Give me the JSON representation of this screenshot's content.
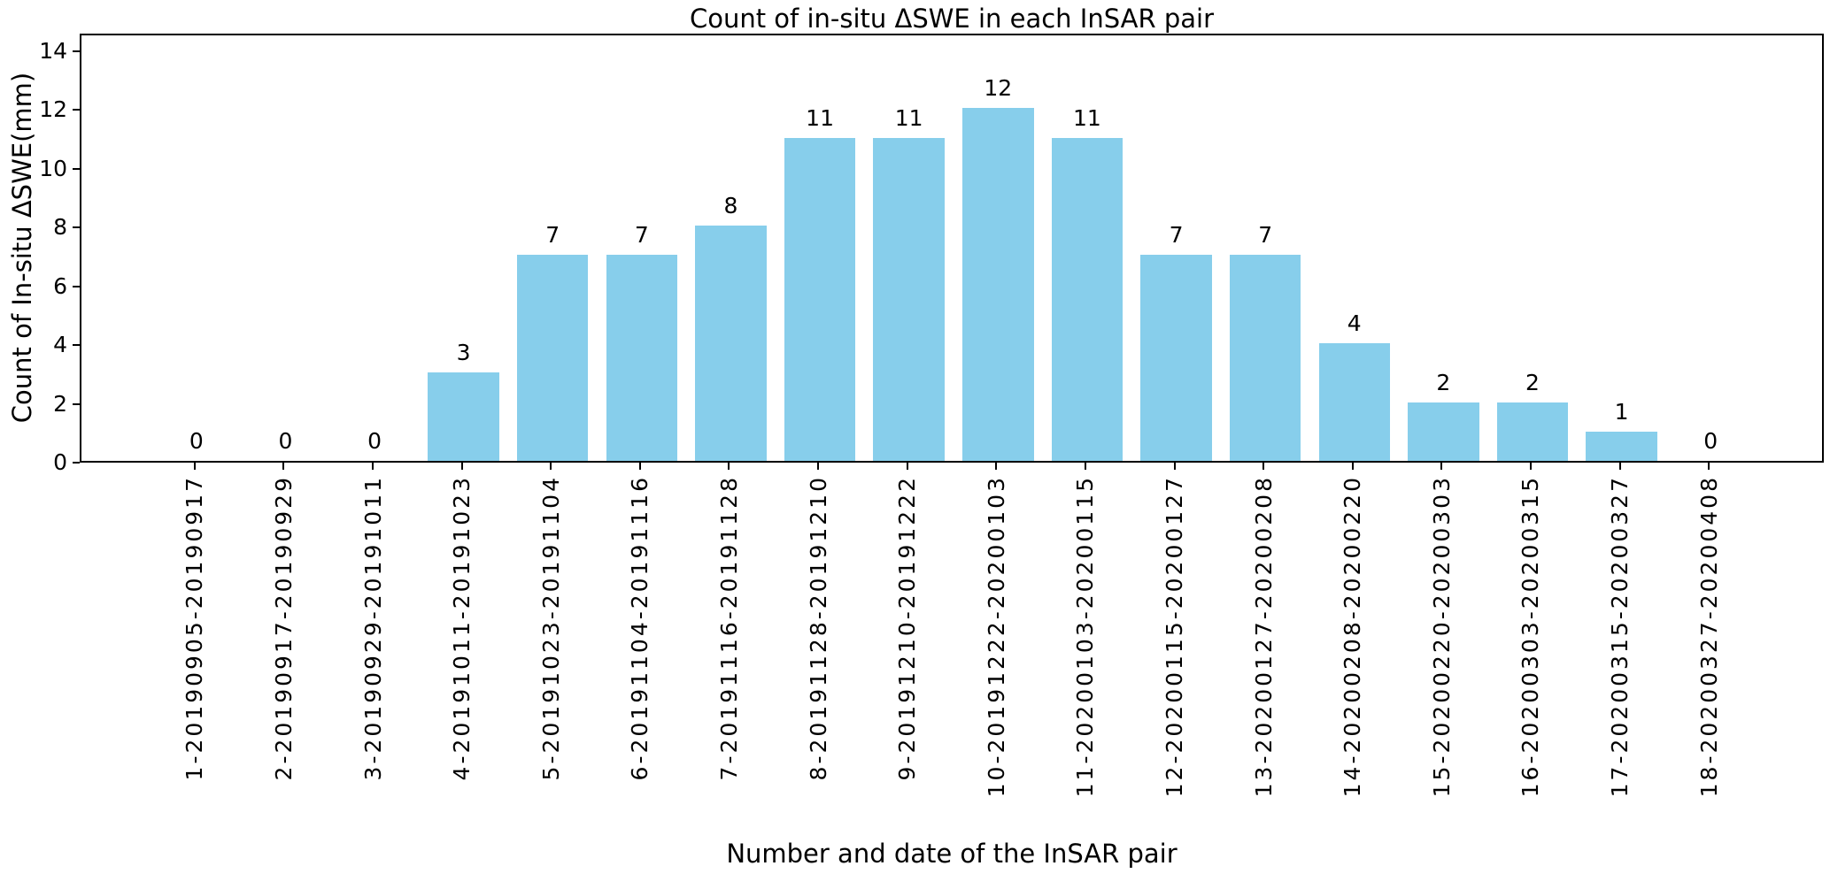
{
  "figure": {
    "background": "#ffffff",
    "axis_color": "#000000"
  },
  "chart_data": {
    "type": "bar",
    "title": "Count of in-situ ΔSWE in each InSAR pair",
    "xlabel": "Number and date of the InSAR pair",
    "ylabel": "Count of In-situ ΔSWE(mm)",
    "categories": [
      "1-20190905-20190917",
      "2-20190917-20190929",
      "3-20190929-20191011",
      "4-20191011-20191023",
      "5-20191023-20191104",
      "6-20191104-20191116",
      "7-20191116-20191128",
      "8-20191128-20191210",
      "9-20191210-20191222",
      "10-20191222-20200103",
      "11-20200103-20200115",
      "12-20200115-20200127",
      "13-20200127-20200208",
      "14-20200208-20200220",
      "15-20200220-20200303",
      "16-20200303-20200315",
      "17-20200315-20200327",
      "18-20200327-20200408"
    ],
    "values": [
      0,
      0,
      0,
      3,
      7,
      7,
      8,
      11,
      11,
      12,
      11,
      7,
      7,
      4,
      2,
      2,
      1,
      0
    ],
    "bar_color": "#87CEEB",
    "yticks": [
      0,
      2,
      4,
      6,
      8,
      10,
      12,
      14
    ],
    "ylim": [
      0,
      14.6
    ],
    "xlim": [
      -1.29,
      18.29
    ],
    "bar_width_units": 0.8,
    "x_tick_rotation_deg": 90,
    "grid": false,
    "legend": null,
    "value_labels_shown": true
  }
}
